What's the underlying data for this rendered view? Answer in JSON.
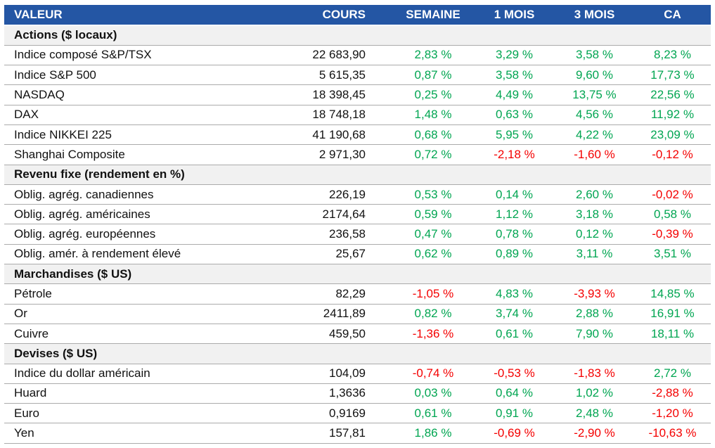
{
  "colors": {
    "header_background": "#2456A4",
    "header_text": "#FFFFFF",
    "positive_value": "#00A551",
    "negative_value": "#F40000",
    "section_background": "#F1F1F1",
    "row_border": "#ABABAB"
  },
  "table": {
    "columns": [
      {
        "key": "name",
        "label": "VALEUR"
      },
      {
        "key": "cours",
        "label": "COURS"
      },
      {
        "key": "semaine",
        "label": "SEMAINE"
      },
      {
        "key": "mois1",
        "label": "1 MOIS"
      },
      {
        "key": "mois3",
        "label": "3 MOIS"
      },
      {
        "key": "ca",
        "label": "CA"
      }
    ],
    "rows": [
      {
        "type": "section",
        "label": "Actions ($ locaux)"
      },
      {
        "type": "data",
        "name": "Indice composé S&P/TSX",
        "cours": "22 683,90",
        "semaine": "2,83 %",
        "mois1": "3,29 %",
        "mois3": "3,58 %",
        "ca": "8,23 %"
      },
      {
        "type": "data",
        "name": "Indice S&P 500",
        "cours": "5 615,35",
        "semaine": "0,87 %",
        "mois1": "3,58 %",
        "mois3": "9,60 %",
        "ca": "17,73 %"
      },
      {
        "type": "data",
        "name": "NASDAQ",
        "cours": "18 398,45",
        "semaine": "0,25 %",
        "mois1": "4,49 %",
        "mois3": "13,75 %",
        "ca": "22,56 %"
      },
      {
        "type": "data",
        "name": "DAX",
        "cours": "18 748,18",
        "semaine": "1,48 %",
        "mois1": "0,63 %",
        "mois3": "4,56 %",
        "ca": "11,92 %"
      },
      {
        "type": "data",
        "name": "Indice NIKKEI 225",
        "cours": "41 190,68",
        "semaine": "0,68 %",
        "mois1": "5,95 %",
        "mois3": "4,22 %",
        "ca": "23,09 %"
      },
      {
        "type": "data",
        "name": "Shanghai Composite",
        "cours": "2 971,30",
        "semaine": "0,72 %",
        "mois1": "-2,18 %",
        "mois3": "-1,60 %",
        "ca": "-0,12 %"
      },
      {
        "type": "section",
        "label": "Revenu fixe (rendement en %)"
      },
      {
        "type": "data",
        "name": "Oblig. agrég. canadiennes",
        "cours": "226,19",
        "semaine": "0,53 %",
        "mois1": "0,14 %",
        "mois3": "2,60 %",
        "ca": "-0,02 %"
      },
      {
        "type": "data",
        "name": "Oblig. agrég. américaines",
        "cours": "2174,64",
        "semaine": "0,59 %",
        "mois1": "1,12 %",
        "mois3": "3,18 %",
        "ca": "0,58 %"
      },
      {
        "type": "data",
        "name": "Oblig. agrég. européennes",
        "cours": "236,58",
        "semaine": "0,47 %",
        "mois1": "0,78 %",
        "mois3": "0,12 %",
        "ca": "-0,39 %"
      },
      {
        "type": "data",
        "name": "Oblig. amér. à rendement élevé",
        "cours": "25,67",
        "semaine": "0,62 %",
        "mois1": "0,89 %",
        "mois3": "3,11 %",
        "ca": "3,51 %"
      },
      {
        "type": "section",
        "label": "Marchandises ($ US)"
      },
      {
        "type": "data",
        "name": "Pétrole",
        "cours": "82,29",
        "semaine": "-1,05 %",
        "mois1": "4,83 %",
        "mois3": "-3,93 %",
        "ca": "14,85 %"
      },
      {
        "type": "data",
        "name": "Or",
        "cours": "2411,89",
        "semaine": "0,82 %",
        "mois1": "3,74 %",
        "mois3": "2,88 %",
        "ca": "16,91 %"
      },
      {
        "type": "data",
        "name": "Cuivre",
        "cours": "459,50",
        "semaine": "-1,36 %",
        "mois1": "0,61 %",
        "mois3": "7,90 %",
        "ca": "18,11 %"
      },
      {
        "type": "section",
        "label": "Devises ($ US)"
      },
      {
        "type": "data",
        "name": "Indice du dollar américain",
        "cours": "104,09",
        "semaine": "-0,74 %",
        "mois1": "-0,53 %",
        "mois3": "-1,83 %",
        "ca": "2,72 %"
      },
      {
        "type": "data",
        "name": "Huard",
        "cours": "1,3636",
        "semaine": "0,03 %",
        "mois1": "0,64 %",
        "mois3": "1,02 %",
        "ca": "-2,88 %"
      },
      {
        "type": "data",
        "name": "Euro",
        "cours": "0,9169",
        "semaine": "0,61 %",
        "mois1": "0,91 %",
        "mois3": "2,48 %",
        "ca": "-1,20 %"
      },
      {
        "type": "data",
        "name": "Yen",
        "cours": "157,81",
        "semaine": "1,86 %",
        "mois1": "-0,69 %",
        "mois3": "-2,90 %",
        "ca": "-10,63 %"
      }
    ]
  }
}
